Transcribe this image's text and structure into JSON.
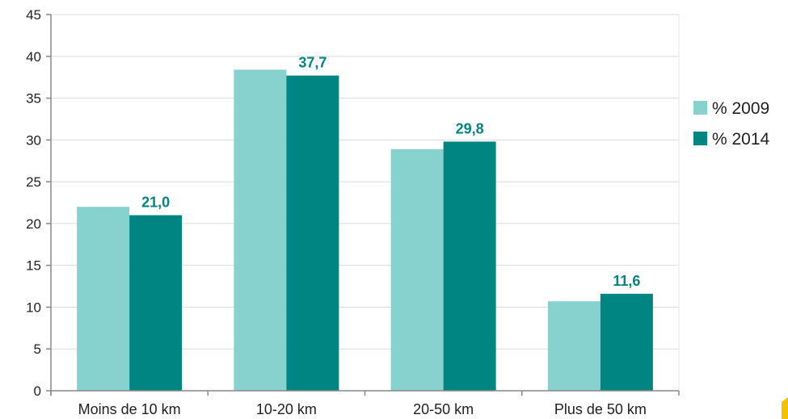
{
  "chart_data": {
    "type": "bar",
    "categories": [
      "Moins de 10 km",
      "10-20 km",
      "20-50 km",
      "Plus de 50 km"
    ],
    "series": [
      {
        "name": "% 2009",
        "values": [
          22.0,
          38.4,
          28.9,
          10.7
        ],
        "color": "#87d1cf",
        "labels": [
          "",
          "",
          "",
          ""
        ]
      },
      {
        "name": "% 2014",
        "values": [
          21.0,
          37.7,
          29.8,
          11.6
        ],
        "color": "#008583",
        "labels": [
          "21,0",
          "37,7",
          "29,8",
          "11,6"
        ]
      }
    ],
    "yticks": [
      "0",
      "5",
      "10",
      "15",
      "20",
      "25",
      "30",
      "35",
      "40",
      "45"
    ],
    "ylim": [
      0,
      45
    ],
    "grid": true,
    "legend": "right",
    "value_label_color": "#008583",
    "title": "",
    "xlabel": "",
    "ylabel": ""
  }
}
